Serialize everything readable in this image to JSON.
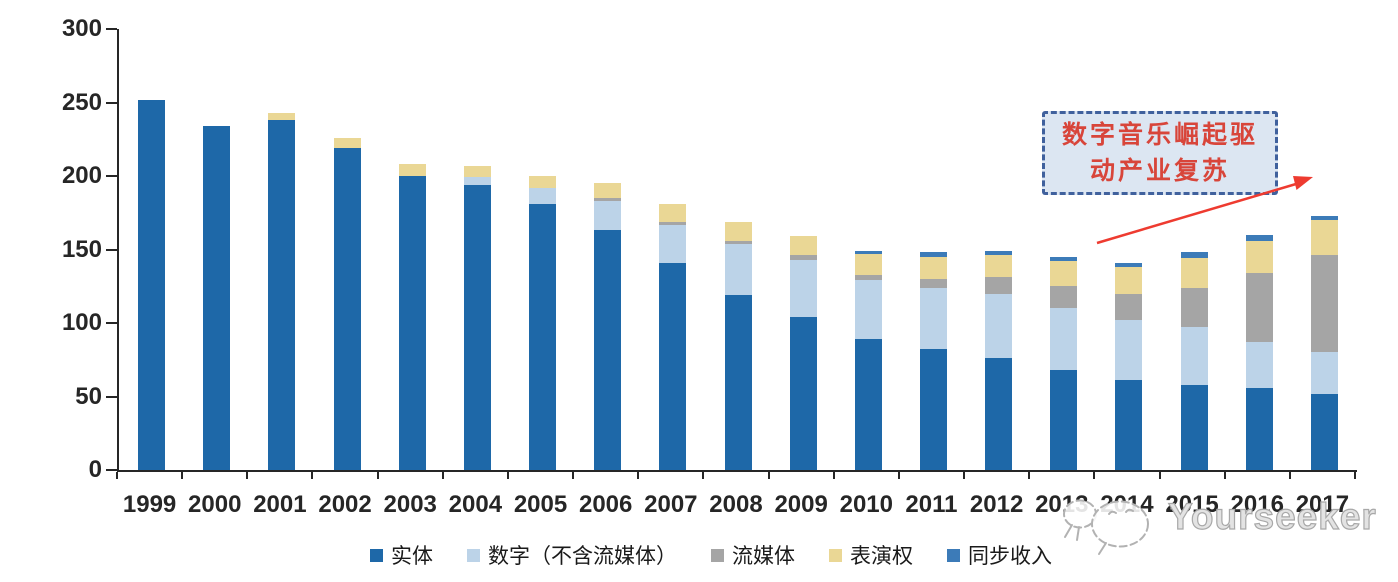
{
  "watermark": {
    "text": "Yourseeker"
  },
  "annotation": {
    "line1": "数字音乐崛起驱",
    "line2": "动产业复苏",
    "text_color": "#D8453A",
    "border_color": "#40619D",
    "fill_color": "#DCE6F2",
    "arrow_color": "#EE3B30"
  },
  "chart_data": {
    "type": "bar",
    "stacked": true,
    "title": "",
    "xlabel": "",
    "ylabel": "",
    "grid": false,
    "legend_position": "bottom",
    "ylim": [
      0,
      300
    ],
    "yticks": [
      0,
      50,
      100,
      150,
      200,
      250,
      300
    ],
    "categories": [
      "1999",
      "2000",
      "2001",
      "2002",
      "2003",
      "2004",
      "2005",
      "2006",
      "2007",
      "2008",
      "2009",
      "2010",
      "2011",
      "2012",
      "2013",
      "2014",
      "2015",
      "2016",
      "2017"
    ],
    "series": [
      {
        "name": "实体",
        "color": "#1E68A8",
        "values": [
          252,
          234,
          238,
          219,
          200,
          194,
          181,
          163,
          141,
          119,
          104,
          89,
          82,
          76,
          68,
          61,
          58,
          56,
          52
        ]
      },
      {
        "name": "数字（不含流媒体）",
        "color": "#BCD3E8",
        "values": [
          0,
          0,
          0,
          0,
          0,
          5,
          11,
          20,
          26,
          35,
          39,
          40,
          42,
          44,
          42,
          41,
          39,
          31,
          28
        ]
      },
      {
        "name": "流媒体",
        "color": "#A5A5A5",
        "values": [
          0,
          0,
          0,
          0,
          0,
          0,
          0,
          2,
          2,
          2,
          3,
          4,
          6,
          11,
          15,
          18,
          27,
          47,
          66
        ]
      },
      {
        "name": "表演权",
        "color": "#EAD795",
        "values": [
          0,
          0,
          5,
          7,
          8,
          8,
          8,
          10,
          12,
          13,
          13,
          14,
          15,
          15,
          17,
          18,
          20,
          22,
          24
        ]
      },
      {
        "name": "同步收入",
        "color": "#3C7BB8",
        "values": [
          0,
          0,
          0,
          0,
          0,
          0,
          0,
          0,
          0,
          0,
          0,
          2,
          3,
          3,
          3,
          3,
          4,
          4,
          3
        ]
      }
    ],
    "totals": [
      252,
      234,
      243,
      226,
      208,
      207,
      200,
      195,
      181,
      169,
      159,
      149,
      148,
      149,
      145,
      141,
      148,
      160,
      173
    ]
  }
}
